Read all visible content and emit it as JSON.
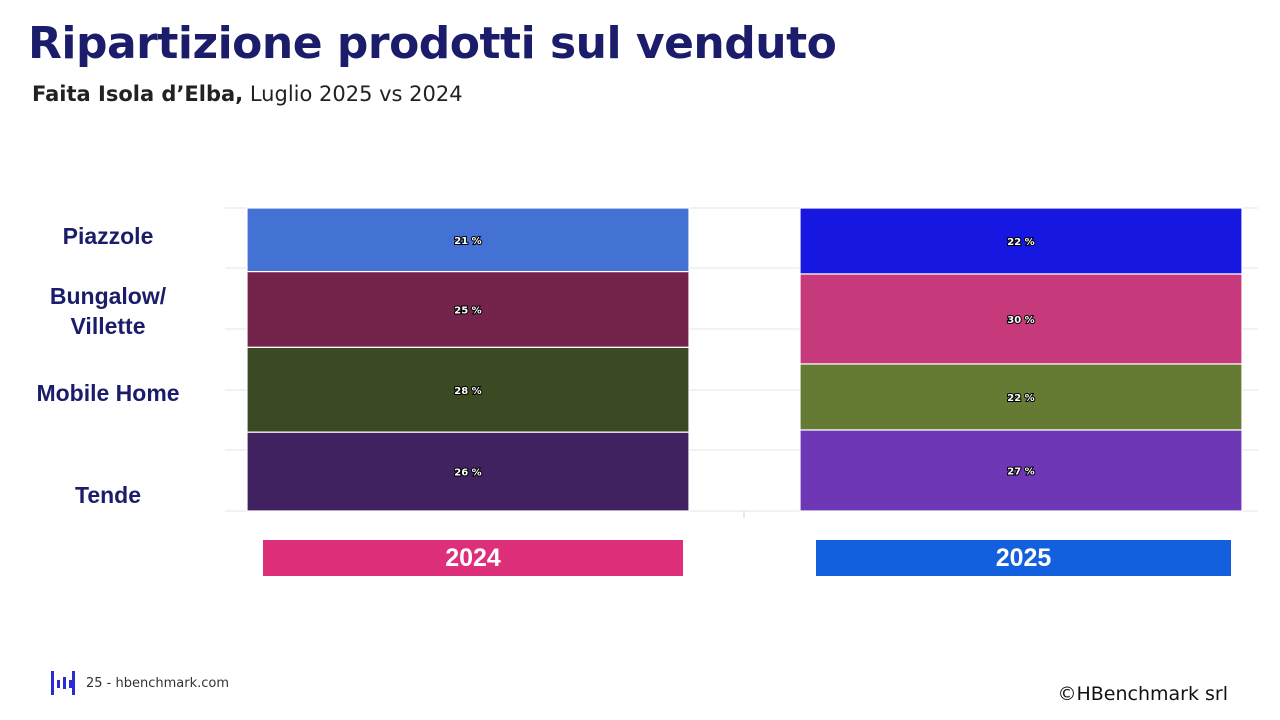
{
  "header": {
    "title": "Ripartizione prodotti sul venduto",
    "subtitle_bold": "Faita Isola d’Elba,",
    "subtitle_rest": " Luglio 2025 vs 2024"
  },
  "chart_data": {
    "type": "bar",
    "stacked": true,
    "normalized_percent": true,
    "categories": [
      "2024",
      "2025"
    ],
    "series": [
      {
        "name": "Piazzole",
        "values": [
          21,
          22
        ],
        "colors": [
          "#4472d4",
          "#1617e0"
        ]
      },
      {
        "name": "Bungalow/ Villette",
        "values": [
          25,
          30
        ],
        "colors": [
          "#74234a",
          "#c6397b"
        ]
      },
      {
        "name": "Mobile Home",
        "values": [
          28,
          22
        ],
        "colors": [
          "#3b4a22",
          "#657b33"
        ]
      },
      {
        "name": "Tende",
        "values": [
          26,
          27
        ],
        "colors": [
          "#412260",
          "#6e37b5"
        ]
      }
    ],
    "value_suffix": " %",
    "category_label_colors": [
      "#dd2f7a",
      "#1360de"
    ],
    "grid": true
  },
  "labels": {
    "piazzole": "Piazzole",
    "bungalow_line1": "Bungalow/",
    "bungalow_line2": "Villette",
    "mobile_home": "Mobile Home",
    "tende": "Tende"
  },
  "footer": {
    "page_text": "25 - hbenchmark.com",
    "copyright": "©HBenchmark srl",
    "logo_icon": "hbenchmark-logo-icon"
  }
}
